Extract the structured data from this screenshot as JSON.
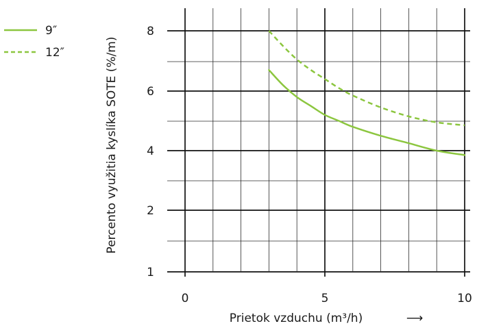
{
  "chart_data": {
    "type": "line",
    "title": "",
    "xlabel": "Prietok vzduchu (m³/h)",
    "xlabel_arrow": "⟶",
    "ylabel": "Percento využitia kyslíka SOTE (%/m)",
    "xlim": [
      0,
      10
    ],
    "ylim_display_ticks": [
      "1",
      "2",
      "4",
      "6",
      "8"
    ],
    "x_tick_labels": [
      "0",
      "5",
      "10"
    ],
    "grid": true,
    "legend_position": "top-left",
    "series": [
      {
        "name": "9″",
        "style": "solid",
        "color": "#8cc63f",
        "x": [
          3.0,
          3.5,
          4.0,
          4.5,
          5.0,
          5.5,
          6.0,
          7.0,
          8.0,
          9.0,
          10.0
        ],
        "y": [
          6.7,
          6.2,
          5.8,
          5.5,
          5.2,
          5.0,
          4.8,
          4.5,
          4.25,
          4.0,
          3.85
        ]
      },
      {
        "name": "12″",
        "style": "dashed",
        "color": "#8cc63f",
        "x": [
          3.0,
          3.5,
          4.0,
          4.5,
          5.0,
          5.5,
          6.0,
          7.0,
          8.0,
          9.0,
          10.0
        ],
        "y": [
          8.0,
          7.5,
          7.05,
          6.7,
          6.4,
          6.1,
          5.85,
          5.45,
          5.15,
          4.95,
          4.85
        ]
      }
    ]
  }
}
